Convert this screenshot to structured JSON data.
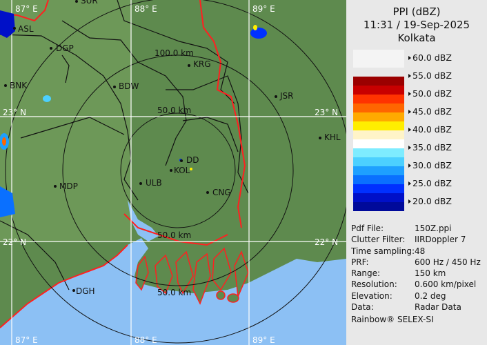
{
  "header": {
    "product": "PPI (dBZ)",
    "datetime": "11:31 / 19-Sep-2025",
    "station": "Kolkata"
  },
  "legend": [
    {
      "label": "60.0 dBZ",
      "colors": [
        "#f4f4f4",
        "#f4f4f4"
      ]
    },
    {
      "label": "55.0 dBZ",
      "colors": [
        "#9b0000",
        "#c80000"
      ]
    },
    {
      "label": "50.0 dBZ",
      "colors": [
        "#ff3300",
        "#ff6600"
      ]
    },
    {
      "label": "45.0 dBZ",
      "colors": [
        "#ffaa00",
        "#ffee00"
      ]
    },
    {
      "label": "40.0 dBZ",
      "colors": [
        "#fff4c8",
        "#ffffff"
      ]
    },
    {
      "label": "35.0 dBZ",
      "colors": [
        "#7eecff",
        "#4cd0ff"
      ]
    },
    {
      "label": "30.0 dBZ",
      "colors": [
        "#1ea0ff",
        "#0a70ff"
      ]
    },
    {
      "label": "25.0 dBZ",
      "colors": [
        "#0030ff",
        "#0010c8"
      ]
    },
    {
      "label": "20.0 dBZ",
      "colors": [
        "#000a9a"
      ]
    }
  ],
  "info": [
    {
      "key": "Pdf File:",
      "value": "150Z.ppi"
    },
    {
      "key": "Clutter Filter:",
      "value": "IIRDoppler 7"
    },
    {
      "key": "Time sampling:",
      "value": "48"
    },
    {
      "key": "PRF:",
      "value": "600 Hz / 450 Hz"
    },
    {
      "key": "Range:",
      "value": "150 km"
    },
    {
      "key": "Resolution:",
      "value": "0.600 km/pixel"
    },
    {
      "key": "Elevation:",
      "value": "0.2 deg"
    },
    {
      "key": "Data:",
      "value": "Radar Data"
    }
  ],
  "footer": "Rainbow® SELEX-SI",
  "map": {
    "land_color": "#5e8a4e",
    "sea_color": "#8cc0f4",
    "border_color": "#ff2020",
    "range_rings": [
      "50.0 km",
      "100.0 km",
      "50.0 km",
      "50.0 km"
    ],
    "grid_labels": {
      "lon_top": [
        "87° E",
        "88° E",
        "89° E"
      ],
      "lon_bottom": [
        "87° E",
        "88° E",
        "89° E"
      ],
      "lat_left": [
        "23° N",
        "22° N"
      ],
      "lat_right": [
        "23° N",
        "22° N"
      ]
    },
    "cities": [
      "SUR",
      "ASL",
      "DGP",
      "BNK",
      "BDW",
      "KRG",
      "JSR",
      "KHL",
      "DD",
      "KOL",
      "ULB",
      "CNG",
      "MDP",
      "DGH"
    ]
  }
}
